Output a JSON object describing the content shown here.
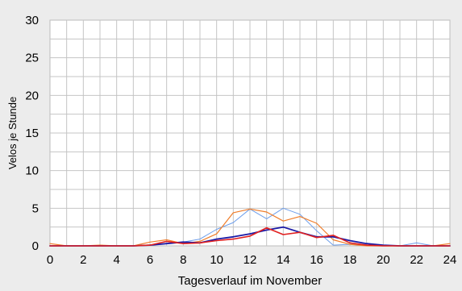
{
  "chart_data": {
    "type": "line",
    "title": "",
    "xlabel": "Tagesverlauf im November",
    "ylabel": "Velos je Stunde",
    "xlim": [
      0,
      24
    ],
    "ylim": [
      0,
      30
    ],
    "xticks": [
      0,
      2,
      4,
      6,
      8,
      10,
      12,
      14,
      16,
      18,
      20,
      22,
      24
    ],
    "yticks": [
      0,
      5,
      10,
      15,
      20,
      25,
      30
    ],
    "grid": true,
    "x": [
      0,
      1,
      2,
      3,
      4,
      5,
      6,
      7,
      8,
      9,
      10,
      11,
      12,
      13,
      14,
      15,
      16,
      17,
      18,
      19,
      20,
      21,
      22,
      23,
      24
    ],
    "series": [
      {
        "color": "#6d9eeb",
        "stroke_width": 1,
        "values": [
          0,
          0,
          0,
          0,
          0,
          0,
          0.1,
          0.3,
          0.5,
          0.9,
          2.2,
          3.1,
          4.9,
          3.6,
          5.0,
          4.2,
          2.0,
          0.1,
          0.2,
          0.1,
          0,
          0,
          0.4,
          0,
          0
        ]
      },
      {
        "color": "#f07d2a",
        "stroke_width": 1.2,
        "values": [
          0.3,
          0,
          0,
          0.1,
          0,
          0,
          0.5,
          0.8,
          0.3,
          0.6,
          1.6,
          4.4,
          4.9,
          4.5,
          3.3,
          3.9,
          3.0,
          0.8,
          0.2,
          0,
          0,
          0,
          0,
          0,
          0.3
        ]
      },
      {
        "color": "#1a1aa6",
        "stroke_width": 1.8,
        "values": [
          0,
          0,
          0,
          0,
          0,
          0,
          0.1,
          0.3,
          0.5,
          0.4,
          0.9,
          1.2,
          1.6,
          2.1,
          2.5,
          1.8,
          1.2,
          1.2,
          0.7,
          0.3,
          0.1,
          0,
          0,
          0,
          0
        ]
      },
      {
        "color": "#e02020",
        "stroke_width": 1.6,
        "values": [
          0,
          0,
          0,
          0,
          0,
          0,
          0.1,
          0.6,
          0.3,
          0.4,
          0.7,
          0.9,
          1.3,
          2.4,
          1.5,
          1.8,
          1.1,
          1.4,
          0.4,
          0.1,
          0,
          0,
          0,
          0,
          0
        ]
      }
    ]
  }
}
